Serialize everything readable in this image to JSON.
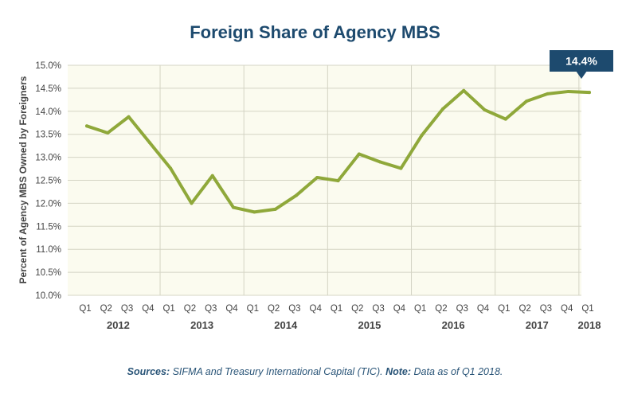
{
  "note": {
    "sources_label": "Sources:",
    "sources_text": " SIFMA and Treasury International Capital (TIC). ",
    "note_label": "Note:",
    "note_text": " Data as of Q1 2018."
  },
  "chart_data": {
    "type": "line",
    "title": "Foreign Share of Agency MBS",
    "ylabel": "Percent of Agency MBS Owned by Foreigners",
    "xlabel": "",
    "ylim": [
      10.0,
      15.0
    ],
    "yticks": [
      "10.0%",
      "10.5%",
      "11.0%",
      "11.5%",
      "12.0%",
      "12.5%",
      "13.0%",
      "13.5%",
      "14.0%",
      "14.5%",
      "15.0%"
    ],
    "grid": true,
    "categories": [
      "Q1",
      "Q2",
      "Q3",
      "Q4",
      "Q1",
      "Q2",
      "Q3",
      "Q4",
      "Q1",
      "Q2",
      "Q3",
      "Q4",
      "Q1",
      "Q2",
      "Q3",
      "Q4",
      "Q1",
      "Q2",
      "Q3",
      "Q4",
      "Q1",
      "Q2",
      "Q3",
      "Q4",
      "Q1"
    ],
    "years": [
      "2012",
      "2013",
      "2014",
      "2015",
      "2016",
      "2017",
      "2018"
    ],
    "series": [
      {
        "name": "",
        "color": "#8fa83a",
        "values": [
          13.68,
          13.53,
          13.88,
          13.32,
          12.76,
          12.0,
          12.6,
          11.91,
          11.81,
          11.87,
          12.17,
          12.56,
          12.49,
          13.07,
          12.9,
          12.76,
          13.48,
          14.05,
          14.45,
          14.03,
          13.83,
          14.22,
          14.38,
          14.43,
          14.41
        ]
      }
    ],
    "annotation": {
      "label": "14.4%",
      "color": "#1d4a6e"
    }
  }
}
